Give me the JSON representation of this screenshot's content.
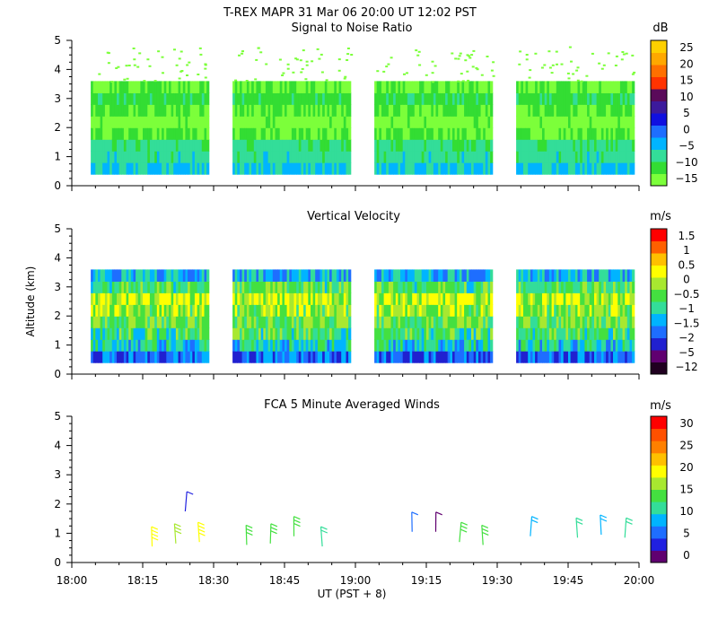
{
  "title": "T-REX   MAPR 31 Mar 06   20:00 UT   12:02   PST",
  "x_axis": {
    "label": "UT  (PST + 8)",
    "ticks": [
      "18:00",
      "18:15",
      "18:30",
      "18:45",
      "19:00",
      "19:15",
      "19:30",
      "19:45",
      "20:00"
    ],
    "range_minutes": [
      0,
      120
    ]
  },
  "colors": {
    "snr": [
      "#7cff3a",
      "#33dd33",
      "#33dd99",
      "#00b4ff",
      "#1e6eff",
      "#1010e0",
      "#3c1a9c",
      "#5a0a5a",
      "#ff3300",
      "#ff7000",
      "#ffa800",
      "#ffd000"
    ],
    "velocity": [
      "#200020",
      "#600070",
      "#2020d0",
      "#1e6eff",
      "#00b4ff",
      "#33dd99",
      "#44e040",
      "#a8e830",
      "#ffff00",
      "#ffc000",
      "#ff6000",
      "#ff0000"
    ],
    "wind": [
      "#600070",
      "#2020e0",
      "#1e6eff",
      "#00b4ff",
      "#33dd99",
      "#44e040",
      "#a8e830",
      "#ffff00",
      "#ffc000",
      "#ff8000",
      "#ff5000",
      "#ff0000"
    ]
  },
  "chart_data": [
    {
      "type": "heatmap",
      "title": "Signal to Noise Ratio",
      "unit": "dB",
      "ylim": [
        0,
        5
      ],
      "yticks": [
        "0",
        "1",
        "2",
        "3",
        "4",
        "5"
      ],
      "colorbar_labels": [
        "25",
        "20",
        "15",
        "10",
        "5",
        "0",
        "−5",
        "−10",
        "−15"
      ],
      "segments_minutes": [
        [
          4,
          29
        ],
        [
          34,
          59
        ],
        [
          64,
          89
        ],
        [
          94,
          119
        ]
      ],
      "profile": [
        {
          "alt": 0.4,
          "value": -2
        },
        {
          "alt": 0.8,
          "value": -5
        },
        {
          "alt": 1.2,
          "value": -6
        },
        {
          "alt": 1.6,
          "value": -12
        },
        {
          "alt": 2.0,
          "value": -15
        },
        {
          "alt": 2.4,
          "value": -12
        },
        {
          "alt": 2.8,
          "value": -9
        },
        {
          "alt": 3.2,
          "value": -13
        }
      ]
    },
    {
      "type": "heatmap",
      "title": "Vertical Velocity",
      "unit": "m/s",
      "ylabel": "Altitude (km)",
      "ylim": [
        0,
        5
      ],
      "yticks": [
        "0",
        "1",
        "2",
        "3",
        "4",
        "5"
      ],
      "colorbar_labels": [
        "1.5",
        "1",
        "0.5",
        "0",
        "−0.5",
        "−1",
        "−1.5",
        "−2",
        "−5",
        "−12"
      ],
      "segments_minutes": [
        [
          4,
          29
        ],
        [
          34,
          59
        ],
        [
          64,
          89
        ],
        [
          94,
          119
        ]
      ],
      "profile": [
        {
          "alt": 0.4,
          "value": -1.8
        },
        {
          "alt": 0.8,
          "value": -1.0
        },
        {
          "alt": 1.2,
          "value": -0.5
        },
        {
          "alt": 1.6,
          "value": -0.2
        },
        {
          "alt": 2.0,
          "value": 0.1
        },
        {
          "alt": 2.4,
          "value": 0.3
        },
        {
          "alt": 2.8,
          "value": -0.4
        },
        {
          "alt": 3.2,
          "value": -1.2
        }
      ]
    },
    {
      "type": "scatter",
      "title": "FCA 5 Minute Averaged Winds",
      "unit": "m/s",
      "ylim": [
        0,
        5
      ],
      "yticks": [
        "0",
        "1",
        "2",
        "3",
        "4",
        "5"
      ],
      "colorbar_labels": [
        "30",
        "25",
        "20",
        "15",
        "10",
        "5",
        "0"
      ],
      "barbs": [
        {
          "t": 17,
          "alt": 0.55,
          "speed": 18
        },
        {
          "t": 22,
          "alt": 0.65,
          "speed": 16
        },
        {
          "t": 27,
          "alt": 0.7,
          "speed": 19
        },
        {
          "t": 24,
          "alt": 1.75,
          "speed": 4
        },
        {
          "t": 37,
          "alt": 0.6,
          "speed": 14
        },
        {
          "t": 42,
          "alt": 0.65,
          "speed": 14
        },
        {
          "t": 47,
          "alt": 0.9,
          "speed": 13
        },
        {
          "t": 53,
          "alt": 0.55,
          "speed": 12
        },
        {
          "t": 72,
          "alt": 1.05,
          "speed": 7
        },
        {
          "t": 77,
          "alt": 1.05,
          "speed": 2
        },
        {
          "t": 82,
          "alt": 0.7,
          "speed": 14
        },
        {
          "t": 87,
          "alt": 0.6,
          "speed": 13
        },
        {
          "t": 97,
          "alt": 0.9,
          "speed": 8
        },
        {
          "t": 107,
          "alt": 0.85,
          "speed": 10
        },
        {
          "t": 112,
          "alt": 0.95,
          "speed": 8
        },
        {
          "t": 117,
          "alt": 0.85,
          "speed": 11
        }
      ]
    }
  ]
}
